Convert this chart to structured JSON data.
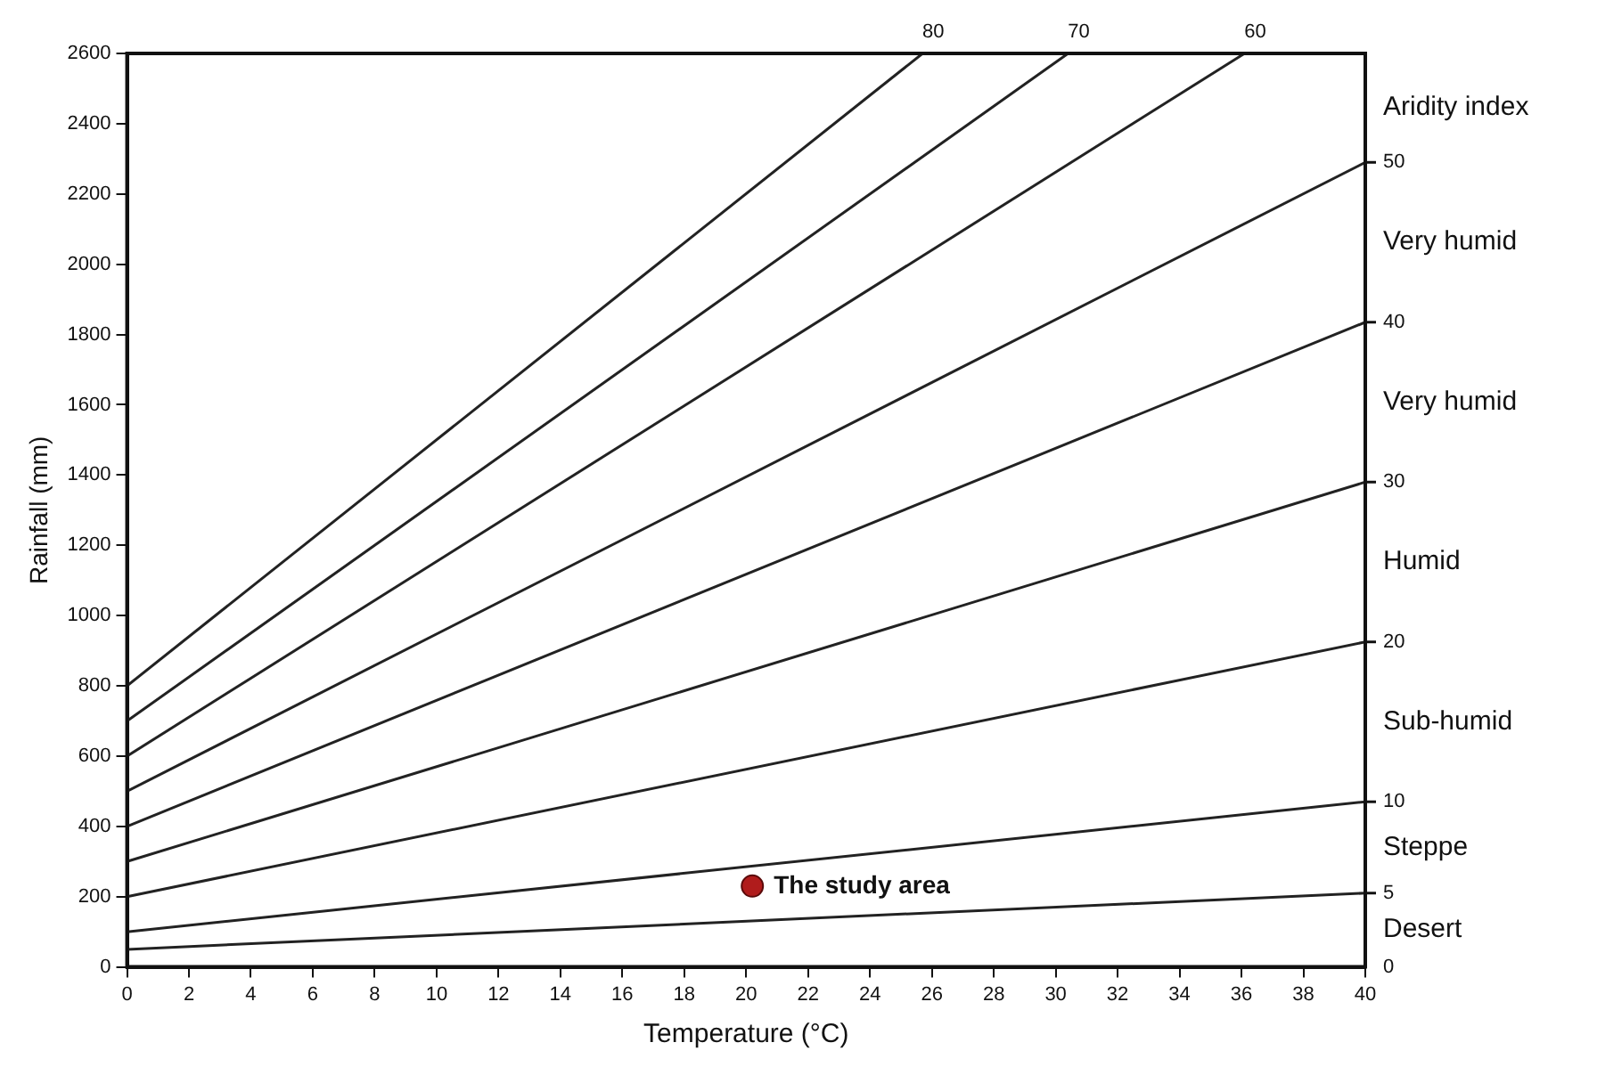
{
  "chart_data": {
    "type": "line",
    "xlabel": "Temperature (°C)",
    "ylabel": "Rainfall (mm)",
    "xlim": [
      0,
      40
    ],
    "xticks": [
      0,
      2,
      4,
      6,
      8,
      10,
      12,
      14,
      16,
      18,
      20,
      22,
      24,
      26,
      28,
      30,
      32,
      34,
      36,
      38,
      40
    ],
    "ylim": [
      0,
      2600
    ],
    "yticks": [
      0,
      200,
      400,
      600,
      800,
      1000,
      1200,
      1400,
      1600,
      1800,
      2000,
      2200,
      2400,
      2600
    ],
    "grid": false,
    "legend": false,
    "marker": "none",
    "line_style": "solid",
    "series": [
      {
        "name": "5",
        "color": "#222222",
        "x": [
          0,
          40
        ],
        "values": [
          50,
          210
        ]
      },
      {
        "name": "10",
        "color": "#222222",
        "x": [
          0,
          40
        ],
        "values": [
          100,
          470
        ]
      },
      {
        "name": "20",
        "color": "#222222",
        "x": [
          0,
          40
        ],
        "values": [
          200,
          925
        ]
      },
      {
        "name": "30",
        "color": "#222222",
        "x": [
          0,
          40
        ],
        "values": [
          300,
          1380
        ]
      },
      {
        "name": "40",
        "color": "#222222",
        "x": [
          0,
          40
        ],
        "values": [
          400,
          1835
        ]
      },
      {
        "name": "50",
        "color": "#222222",
        "x": [
          0,
          40
        ],
        "values": [
          500,
          2290
        ]
      },
      {
        "name": "60",
        "color": "#222222",
        "x": [
          0,
          36.1
        ],
        "values": [
          600,
          2600
        ]
      },
      {
        "name": "70",
        "color": "#222222",
        "x": [
          0,
          30.4
        ],
        "values": [
          700,
          2600
        ]
      },
      {
        "name": "80",
        "color": "#222222",
        "x": [
          0,
          25.7
        ],
        "values": [
          800,
          2600
        ]
      },
      {
        "name": "The study area",
        "type": "scatter",
        "marker": "circle",
        "color": "#b01c1c",
        "x": [
          20.2
        ],
        "values": [
          230
        ]
      }
    ],
    "annotations": [
      "0",
      "Desert",
      "Steppe",
      "Sub-humid",
      "Humid",
      "Very humid",
      "Very humid",
      "Aridity index"
    ]
  }
}
